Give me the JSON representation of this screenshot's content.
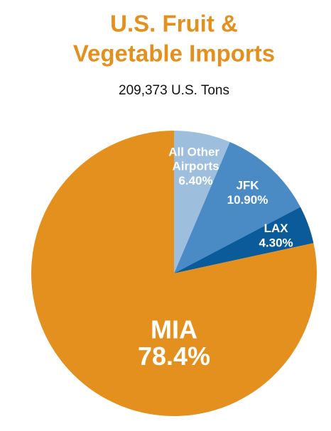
{
  "chart_data": {
    "type": "pie",
    "title": [
      "U.S. Fruit &",
      "Vegetable Imports"
    ],
    "subtitle": "209,373 U.S. Tons",
    "categories": [
      "All Other Airports",
      "JFK",
      "LAX",
      "MIA"
    ],
    "values": [
      6.4,
      10.9,
      4.3,
      78.4
    ],
    "value_labels": [
      "6.40%",
      "10.90%",
      "4.30%",
      "78.4%"
    ],
    "colors": [
      "#9dbfdd",
      "#4a8bc6",
      "#0b5b9b",
      "#e4901e"
    ],
    "title_color": "#e4901e"
  }
}
